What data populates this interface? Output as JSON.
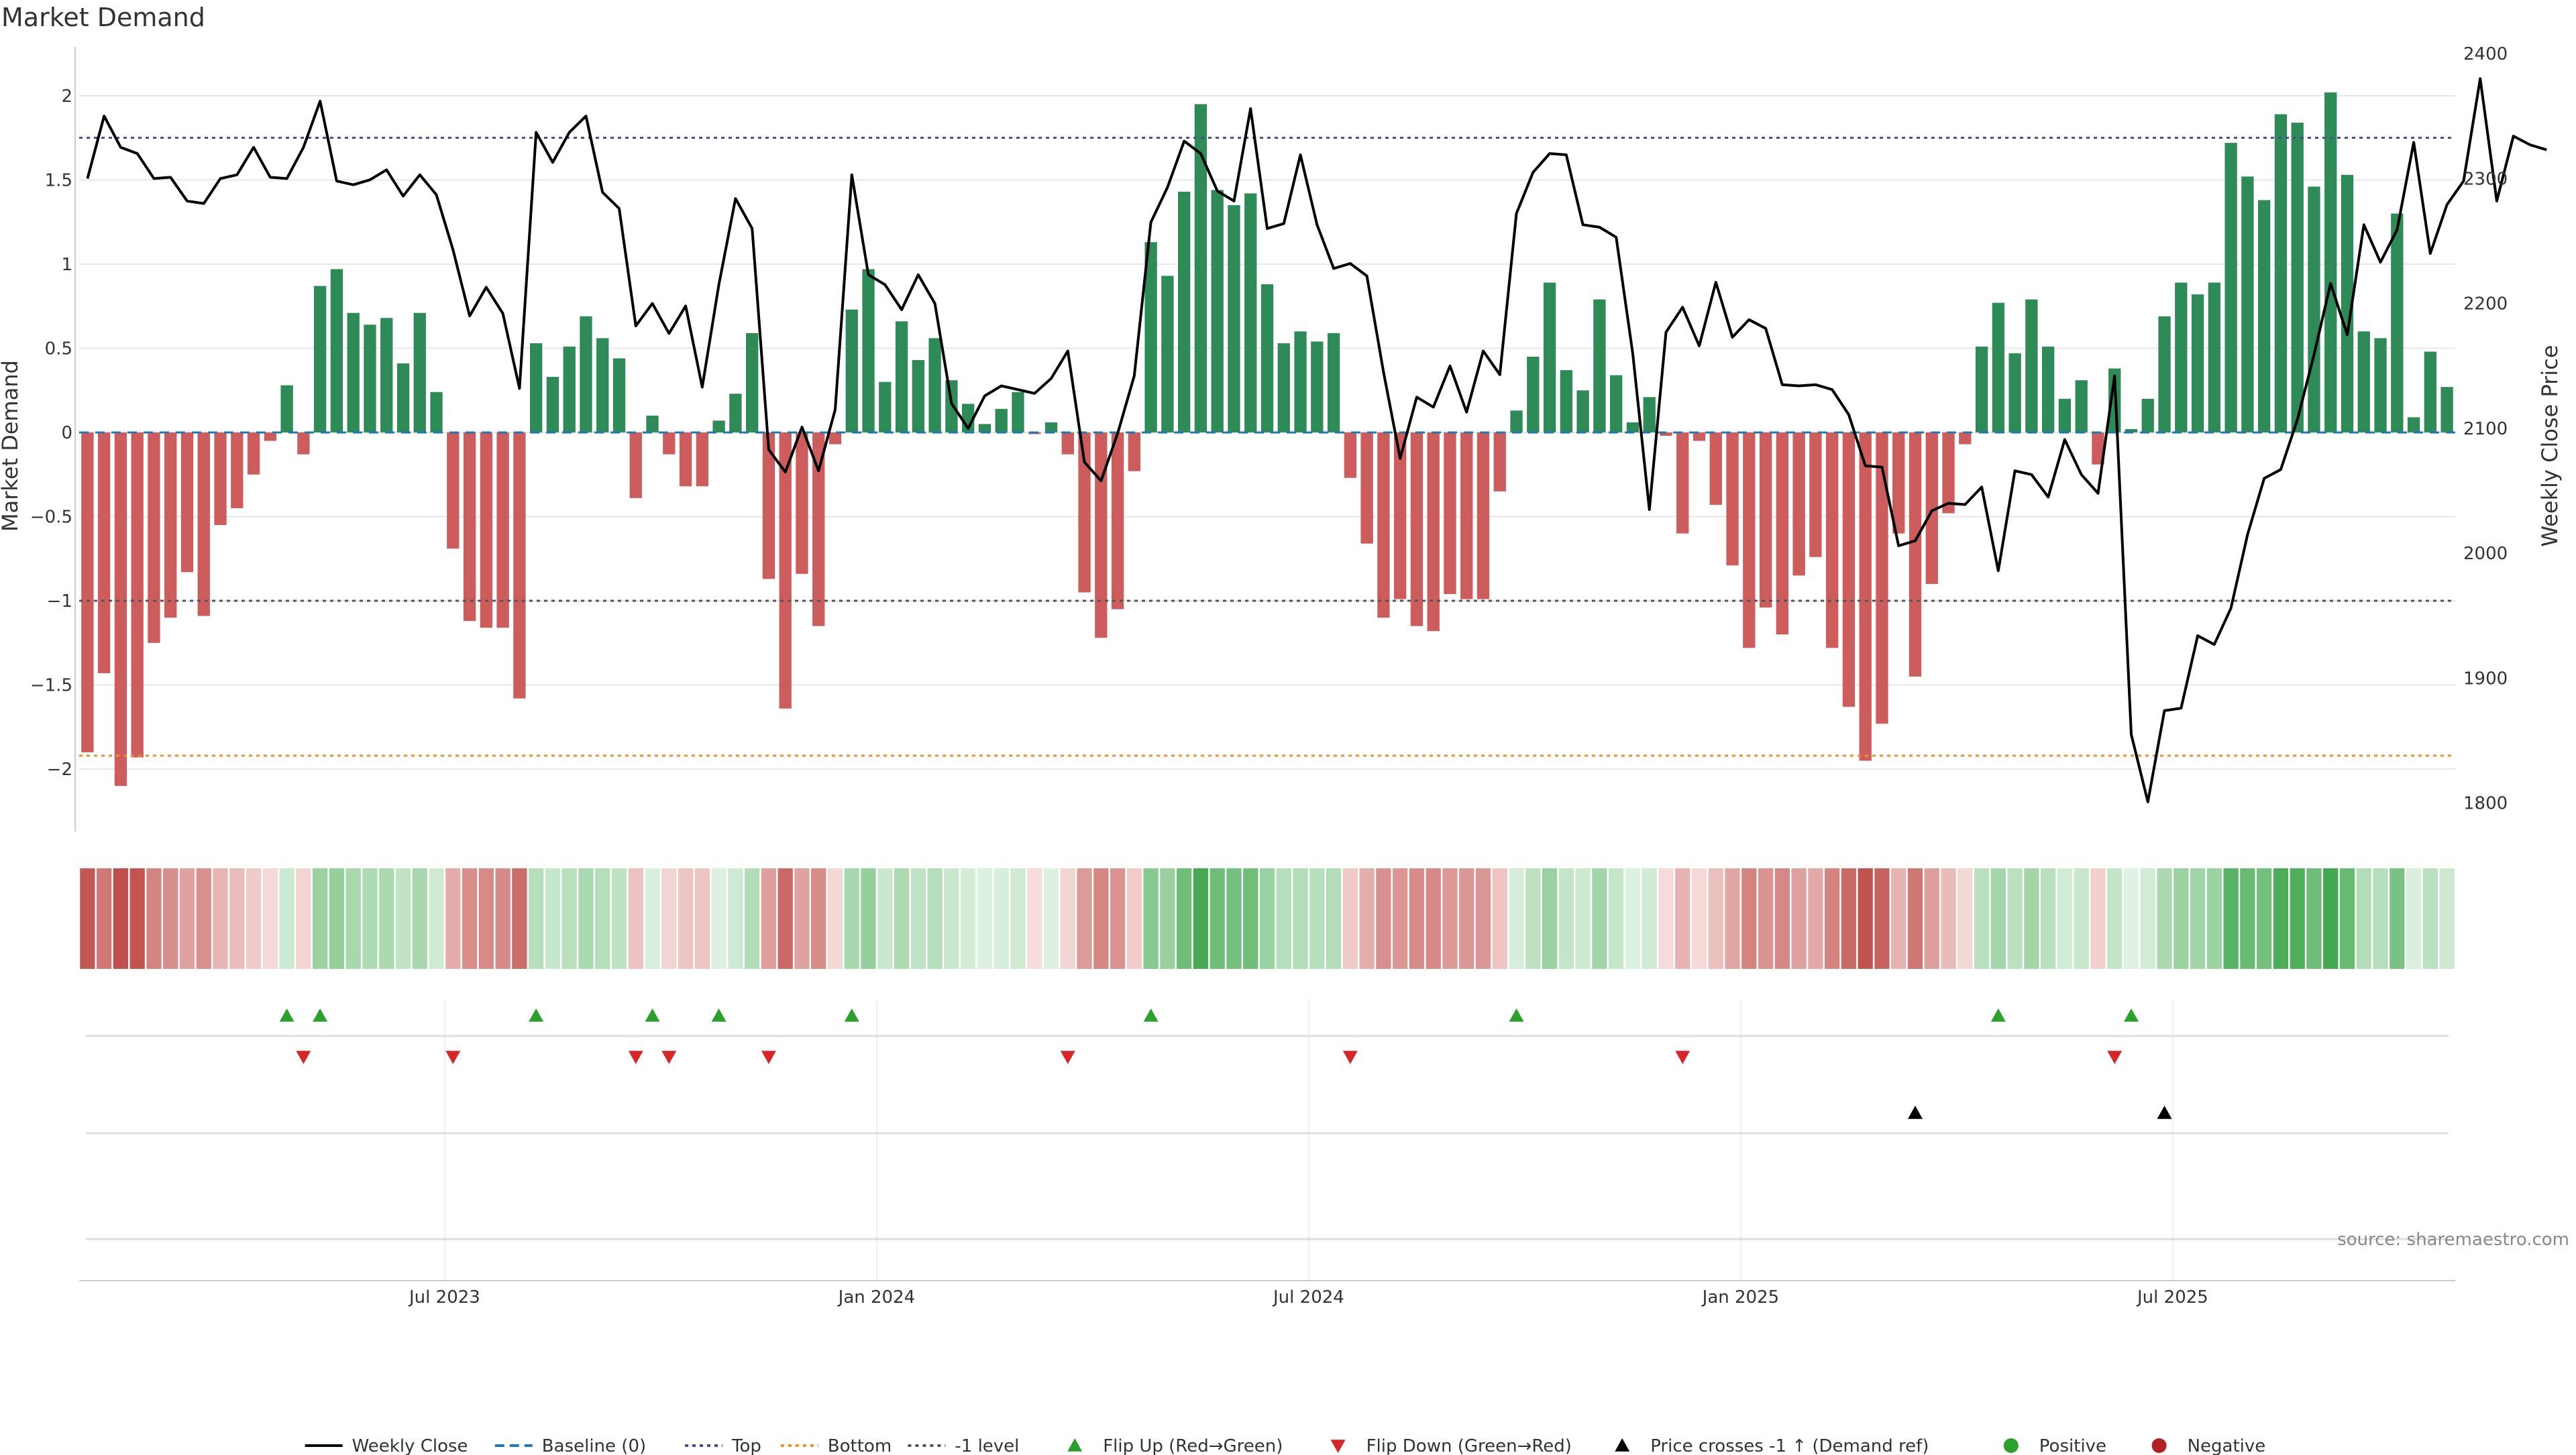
{
  "chart_data": {
    "type": "bar",
    "title": "Market Demand",
    "ylabel": "Market Demand",
    "y2label": "Weekly Close Price",
    "ylim": [
      -2.35,
      2.25
    ],
    "y2lim": [
      1780,
      2400
    ],
    "yticks": [
      -2,
      -1.5,
      -1,
      -0.5,
      0,
      0.5,
      1,
      1.5,
      2
    ],
    "ytick_labels": [
      "−2",
      "−1.5",
      "−1",
      "−0.5",
      "0",
      "0.5",
      "1",
      "1.5",
      "2"
    ],
    "y2ticks": [
      1800,
      1900,
      2000,
      2100,
      2200,
      2300,
      2400
    ],
    "y2tick_labels": [
      "1800",
      "1900",
      "2000",
      "2100",
      "2200",
      "2300",
      "2400"
    ],
    "x_tick_labels": [
      {
        "label": "Jul 2023",
        "week": 22
      },
      {
        "label": "Jan 2024",
        "week": 48
      },
      {
        "label": "Jul 2024",
        "week": 74
      },
      {
        "label": "Jan 2025",
        "week": 100
      },
      {
        "label": "Jul 2025",
        "week": 126
      }
    ],
    "levels": {
      "baseline": 0,
      "top": 1.75,
      "bottom": -1.92,
      "minus_one": -1
    },
    "demand": [
      -1.9,
      -1.43,
      -2.1,
      -1.93,
      -1.25,
      -1.1,
      -0.83,
      -1.09,
      -0.55,
      -0.45,
      -0.25,
      -0.05,
      0.28,
      -0.13,
      0.87,
      0.97,
      0.71,
      0.64,
      0.68,
      0.41,
      0.71,
      0.24,
      -0.69,
      -1.12,
      -1.16,
      -1.16,
      -1.58,
      0.53,
      0.33,
      0.51,
      0.69,
      0.56,
      0.44,
      -0.39,
      0.1,
      -0.13,
      -0.32,
      -0.32,
      0.07,
      0.23,
      0.59,
      -0.87,
      -1.64,
      -0.84,
      -1.15,
      -0.07,
      0.73,
      0.97,
      0.3,
      0.66,
      0.43,
      0.56,
      0.31,
      0.17,
      0.05,
      0.14,
      0.24,
      -0.01,
      0.06,
      -0.13,
      -0.95,
      -1.22,
      -1.05,
      -0.23,
      1.13,
      0.93,
      1.43,
      1.95,
      1.44,
      1.35,
      1.42,
      0.88,
      0.53,
      0.6,
      0.54,
      0.59,
      -0.27,
      -0.66,
      -1.1,
      -0.99,
      -1.15,
      -1.18,
      -0.96,
      -0.99,
      -0.99,
      -0.35,
      0.13,
      0.45,
      0.89,
      0.37,
      0.25,
      0.79,
      0.34,
      0.06,
      0.21,
      -0.02,
      -0.6,
      -0.05,
      -0.43,
      -0.79,
      -1.28,
      -1.04,
      -1.2,
      -0.85,
      -0.74,
      -1.28,
      -1.63,
      -1.95,
      -1.73,
      -0.6,
      -1.45,
      -0.9,
      -0.48,
      -0.07,
      0.51,
      0.77,
      0.47,
      0.79,
      0.51,
      0.2,
      0.31,
      -0.19,
      0.38,
      0.02,
      0.2,
      0.69,
      0.89,
      0.82,
      0.89,
      1.72,
      1.52,
      1.38,
      1.89,
      1.84,
      1.46,
      2.02,
      1.53,
      0.6,
      0.56,
      1.3,
      0.09,
      0.48,
      0.27
    ],
    "weekly_close": [
      2300,
      2350,
      2325,
      2320,
      2300,
      2301,
      2282,
      2280,
      2300,
      2303,
      2325,
      2301,
      2300,
      2325,
      2362,
      2298,
      2295,
      2299,
      2307,
      2286,
      2303,
      2287,
      2243,
      2190,
      2213,
      2192,
      2132,
      2337,
      2313,
      2337,
      2350,
      2289,
      2276,
      2182,
      2200,
      2176,
      2198,
      2133,
      2215,
      2284,
      2260,
      2083,
      2065,
      2101,
      2066,
      2115,
      2303,
      2223,
      2215,
      2195,
      2223,
      2200,
      2120,
      2100,
      2126,
      2134,
      2131,
      2128,
      2140,
      2162,
      2073,
      2058,
      2096,
      2142,
      2265,
      2293,
      2330,
      2320,
      2290,
      2282,
      2356,
      2260,
      2264,
      2319,
      2263,
      2228,
      2232,
      2222,
      2145,
      2076,
      2125,
      2117,
      2150,
      2113,
      2162,
      2143,
      2272,
      2305,
      2320,
      2319,
      2263,
      2261,
      2253,
      2160,
      2035,
      2177,
      2197,
      2166,
      2217,
      2173,
      2187,
      2180,
      2135,
      2134,
      2135,
      2131,
      2111,
      2070,
      2069,
      2006,
      2010,
      2034,
      2040,
      2039,
      2053,
      1986,
      2066,
      2063,
      2045,
      2091,
      2063,
      2048,
      2142,
      1855,
      1801,
      1874,
      1876,
      1934,
      1927,
      1956,
      2015,
      2060,
      2067,
      2107,
      2159,
      2216,
      2175,
      2263,
      2233,
      2259,
      2329,
      2240,
      2279,
      2298,
      2380,
      2282,
      2334,
      2327,
      2323
    ],
    "flip_up_weeks": [
      12,
      14,
      27,
      34,
      38,
      46,
      64,
      86,
      115,
      123
    ],
    "flip_down_weeks": [
      13,
      22,
      33,
      35,
      41,
      59,
      76,
      96,
      122
    ],
    "price_cross_weeks": [
      110,
      125
    ],
    "legend": [
      {
        "label": "Weekly Close",
        "style": "line",
        "color": "#000000"
      },
      {
        "label": "Baseline (0)",
        "style": "dash",
        "color": "#1f77b4"
      },
      {
        "label": "Top",
        "style": "dot",
        "color": "#4c4c8f"
      },
      {
        "label": "Bottom",
        "style": "dot",
        "color": "#e8922c"
      },
      {
        "label": "-1 level",
        "style": "dot",
        "color": "#555555"
      },
      {
        "label": "Flip Up (Red→Green)",
        "style": "tri-up",
        "color": "#2ca02c"
      },
      {
        "label": "Flip Down (Green→Red)",
        "style": "tri-down",
        "color": "#d62728"
      },
      {
        "label": "Price crosses -1 ↑ (Demand ref)",
        "style": "tri-up",
        "color": "#000000"
      },
      {
        "label": "Positive",
        "style": "circle",
        "color": "#2ca02c"
      },
      {
        "label": "Negative",
        "style": "circle",
        "color": "#b22222"
      }
    ],
    "source_note": "source: sharemaestro.com",
    "colors": {
      "positive_bar": "#2e8b57",
      "negative_bar": "#cd5c5c",
      "grid": "#e6e6e6"
    }
  }
}
